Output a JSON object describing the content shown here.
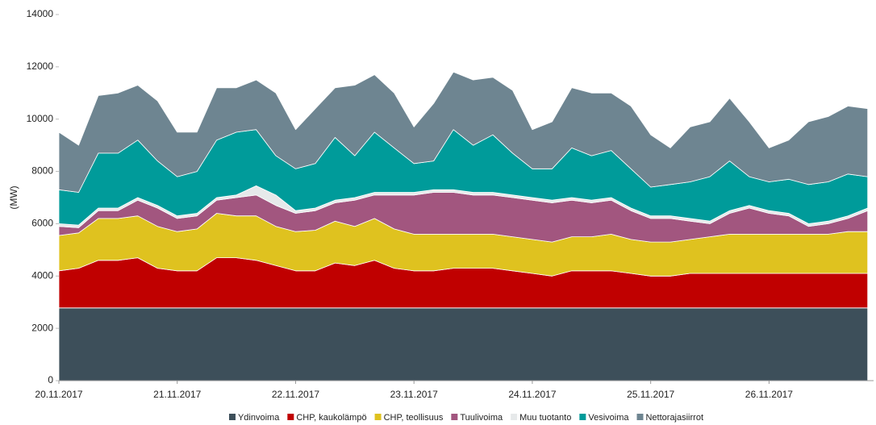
{
  "chart_data": {
    "type": "stacked_area",
    "y_label": "(MW)",
    "ylim": [
      0,
      14000
    ],
    "yticks": [
      0,
      2000,
      4000,
      6000,
      8000,
      10000,
      12000,
      14000
    ],
    "grid": false,
    "legend": "bottom",
    "categories": [
      "20.11.2017",
      null,
      null,
      null,
      null,
      null,
      "21.11.2017",
      null,
      null,
      null,
      null,
      null,
      "22.11.2017",
      null,
      null,
      null,
      null,
      null,
      "23.11.2017",
      null,
      null,
      null,
      null,
      null,
      "24.11.2017",
      null,
      null,
      null,
      null,
      null,
      "25.11.2017",
      null,
      null,
      null,
      null,
      null,
      "26.11.2017",
      null,
      null,
      null,
      null,
      null
    ],
    "series": [
      {
        "name": "Ydinvoima",
        "color": "#3d4f5a",
        "values": [
          2780,
          2780,
          2780,
          2780,
          2780,
          2780,
          2780,
          2780,
          2780,
          2780,
          2780,
          2780,
          2780,
          2780,
          2780,
          2780,
          2780,
          2780,
          2780,
          2780,
          2780,
          2780,
          2780,
          2780,
          2780,
          2780,
          2780,
          2780,
          2780,
          2780,
          2780,
          2780,
          2780,
          2780,
          2780,
          2780,
          2780,
          2780,
          2780,
          2780,
          2780,
          2780
        ]
      },
      {
        "name": "CHP, kaukolämpö",
        "color": "#c00000",
        "values": [
          1420,
          1520,
          1820,
          1820,
          1920,
          1520,
          1420,
          1420,
          1920,
          1920,
          1820,
          1620,
          1420,
          1420,
          1720,
          1620,
          1820,
          1520,
          1420,
          1420,
          1520,
          1520,
          1520,
          1420,
          1320,
          1220,
          1420,
          1420,
          1420,
          1320,
          1220,
          1220,
          1320,
          1320,
          1320,
          1320,
          1320,
          1320,
          1320,
          1320,
          1320,
          1320
        ]
      },
      {
        "name": "CHP, teollisuus",
        "color": "#dfc21f",
        "values": [
          1350,
          1350,
          1600,
          1600,
          1600,
          1600,
          1500,
          1600,
          1700,
          1600,
          1700,
          1500,
          1500,
          1550,
          1600,
          1500,
          1600,
          1500,
          1400,
          1400,
          1300,
          1300,
          1300,
          1300,
          1300,
          1300,
          1300,
          1300,
          1400,
          1300,
          1300,
          1300,
          1300,
          1400,
          1500,
          1500,
          1500,
          1500,
          1500,
          1500,
          1600,
          1600
        ]
      },
      {
        "name": "Tuulivoima",
        "color": "#a2567f",
        "values": [
          350,
          200,
          300,
          300,
          600,
          700,
          500,
          500,
          500,
          700,
          800,
          800,
          700,
          750,
          700,
          1000,
          900,
          1300,
          1500,
          1600,
          1600,
          1500,
          1500,
          1500,
          1500,
          1500,
          1400,
          1300,
          1300,
          1100,
          900,
          900,
          700,
          500,
          800,
          1000,
          800,
          700,
          300,
          400,
          500,
          800
        ]
      },
      {
        "name": "Muu tuotanto",
        "color": "#e6e9ea",
        "values": [
          100,
          100,
          100,
          100,
          100,
          100,
          100,
          100,
          100,
          100,
          350,
          400,
          100,
          100,
          100,
          100,
          100,
          100,
          100,
          100,
          100,
          100,
          100,
          100,
          100,
          100,
          100,
          100,
          100,
          100,
          100,
          100,
          100,
          100,
          100,
          100,
          100,
          100,
          100,
          100,
          100,
          100
        ]
      },
      {
        "name": "Vesivoima",
        "color": "#009b9a",
        "values": [
          1300,
          1250,
          2100,
          2100,
          2200,
          1700,
          1500,
          1600,
          2200,
          2400,
          2150,
          1500,
          1600,
          1700,
          2400,
          1600,
          2300,
          1700,
          1100,
          1100,
          2300,
          1800,
          2200,
          1600,
          1100,
          1200,
          1900,
          1700,
          1800,
          1500,
          1100,
          1200,
          1400,
          1700,
          1900,
          1100,
          1100,
          1300,
          1500,
          1500,
          1600,
          1200
        ]
      },
      {
        "name": "Nettorajasiirrot",
        "color": "#6e8591",
        "values": [
          2200,
          1800,
          2200,
          2300,
          2100,
          2300,
          1700,
          1500,
          2000,
          1700,
          1900,
          2400,
          1500,
          2100,
          1900,
          2700,
          2200,
          2100,
          1400,
          2200,
          2200,
          2500,
          2200,
          2400,
          1500,
          1800,
          2300,
          2400,
          2200,
          2400,
          2000,
          1400,
          2100,
          2100,
          2400,
          2100,
          1300,
          1500,
          2400,
          2500,
          2600,
          2600
        ]
      }
    ]
  }
}
